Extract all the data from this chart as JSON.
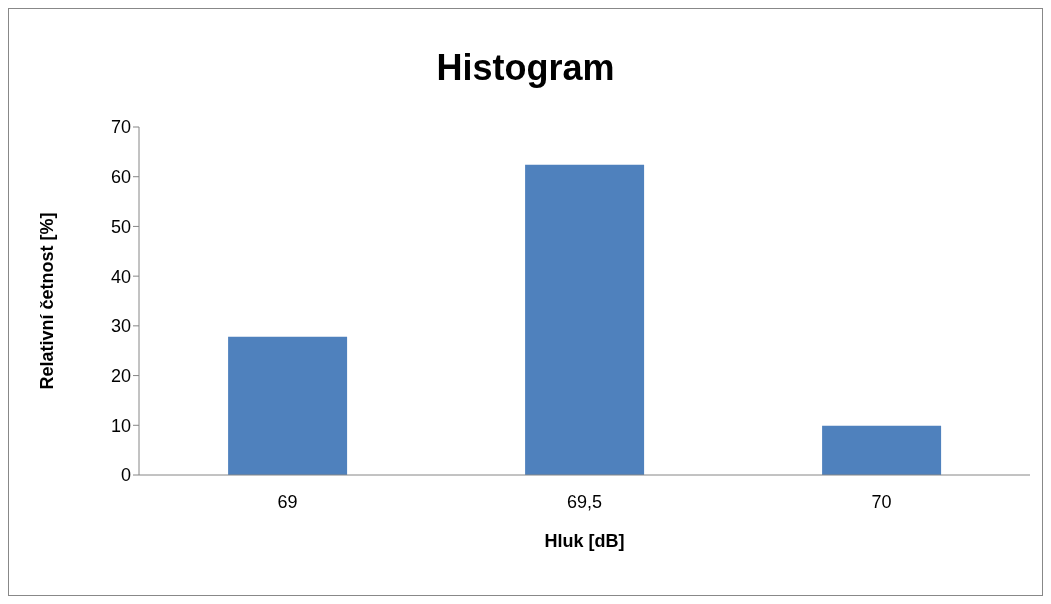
{
  "chart_data": {
    "type": "bar",
    "title": "Histogram",
    "xlabel": "Hluk [dB]",
    "ylabel": "Relativní četnost [%]",
    "categories": [
      "69",
      "69,5",
      "70"
    ],
    "values": [
      27.8,
      62.4,
      9.9
    ],
    "color": "#4f81bd",
    "ylim": [
      0,
      70
    ],
    "yticks": [
      0,
      10,
      20,
      30,
      40,
      50,
      60,
      70
    ],
    "grid": false
  }
}
